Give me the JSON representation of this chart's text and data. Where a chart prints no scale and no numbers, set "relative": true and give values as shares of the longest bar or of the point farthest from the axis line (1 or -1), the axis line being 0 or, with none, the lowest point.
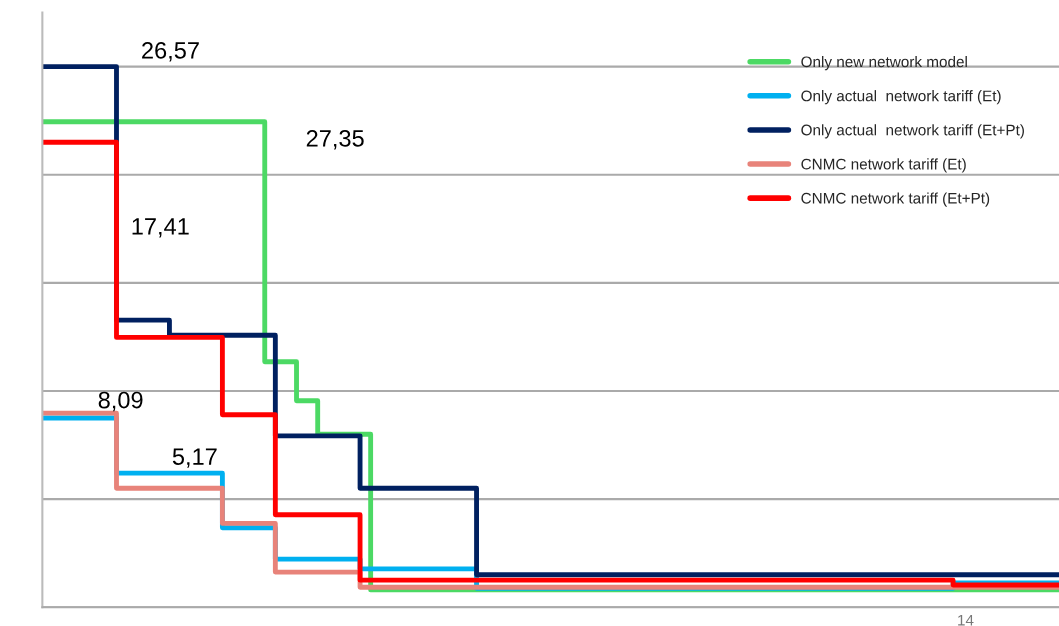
{
  "chart_data": {
    "type": "step",
    "relative": true,
    "grid": "y",
    "legend": "top right",
    "categories": [
      null,
      null,
      null,
      null,
      null,
      null,
      null,
      null,
      null,
      null,
      null,
      null,
      null,
      null,
      null,
      null,
      null,
      null,
      null,
      null,
      null,
      null,
      null,
      null,
      null,
      null,
      null,
      null,
      null,
      null,
      null,
      null,
      null,
      null,
      null,
      null,
      null,
      null,
      null,
      null,
      null,
      null,
      null,
      null,
      null,
      null,
      null,
      null,
      null,
      null,
      null,
      null,
      null,
      null,
      null,
      null,
      null,
      null,
      null,
      null,
      null,
      null,
      null,
      null,
      null,
      null,
      null,
      null,
      null,
      null,
      null,
      null,
      null,
      null,
      null,
      null,
      null,
      null,
      null,
      null,
      null,
      null,
      null,
      null,
      null,
      null,
      null,
      null,
      null,
      null,
      null,
      null,
      null,
      null,
      null,
      null,
      null
    ],
    "series": [
      {
        "name": "Only new network model",
        "color": "#4cd964",
        "values": [
          0.898,
          0.898,
          0.898,
          0.898,
          0.898,
          0.898,
          0.898,
          0.898,
          0.898,
          0.898,
          0.898,
          0.898,
          0.898,
          0.898,
          0.898,
          0.898,
          0.898,
          0.898,
          0.898,
          0.898,
          0.898,
          0.454,
          0.454,
          0.454,
          0.382,
          0.382,
          0.32,
          0.32,
          0.32,
          0.32,
          0.32,
          0.032,
          0.032,
          0.032,
          0.032,
          0.032,
          0.032,
          0.032,
          0.032,
          0.032,
          0.032,
          0.032,
          0.032,
          0.032,
          0.032,
          0.032,
          0.032,
          0.032,
          0.032,
          0.032,
          0.032,
          0.032,
          0.032,
          0.032,
          0.032,
          0.032,
          0.032,
          0.032,
          0.032,
          0.032,
          0.032,
          0.032,
          0.032,
          0.032,
          0.032,
          0.032,
          0.032,
          0.032,
          0.032,
          0.032,
          0.032,
          0.032,
          0.032,
          0.032,
          0.032,
          0.032,
          0.032,
          0.032,
          0.032,
          0.032,
          0.032,
          0.032,
          0.032,
          0.032,
          0.032,
          0.032,
          0.032,
          0.032,
          0.032,
          0.032,
          0.032,
          0.032,
          0.032,
          0.032,
          0.032,
          0.032,
          0.032
        ]
      },
      {
        "name": "Only actual  network tariff (Et)",
        "color": "#00b0f0",
        "values": [
          0.35,
          0.35,
          0.35,
          0.35,
          0.35,
          0.35,
          0.35,
          0.248,
          0.248,
          0.248,
          0.248,
          0.248,
          0.248,
          0.248,
          0.248,
          0.248,
          0.248,
          0.147,
          0.147,
          0.147,
          0.147,
          0.147,
          0.089,
          0.089,
          0.089,
          0.089,
          0.089,
          0.089,
          0.089,
          0.089,
          0.071,
          0.071,
          0.071,
          0.071,
          0.071,
          0.071,
          0.071,
          0.071,
          0.071,
          0.071,
          0.071,
          0.035,
          0.035,
          0.035,
          0.035,
          0.035,
          0.035,
          0.035,
          0.035,
          0.035,
          0.035,
          0.035,
          0.035,
          0.035,
          0.035,
          0.035,
          0.035,
          0.035,
          0.035,
          0.035,
          0.035,
          0.035,
          0.035,
          0.035,
          0.035,
          0.035,
          0.035,
          0.035,
          0.035,
          0.035,
          0.035,
          0.035,
          0.035,
          0.035,
          0.035,
          0.035,
          0.035,
          0.035,
          0.035,
          0.035,
          0.035,
          0.035,
          0.035,
          0.035,
          0.035,
          0.035,
          0.045,
          0.045,
          0.045,
          0.045,
          0.045,
          0.045,
          0.045,
          0.045,
          0.045,
          0.045,
          0.045
        ]
      },
      {
        "name": "Only actual  network tariff (Et+Pt)",
        "color": "#002060",
        "values": [
          1.0,
          1.0,
          1.0,
          1.0,
          1.0,
          1.0,
          1.0,
          0.531,
          0.531,
          0.531,
          0.531,
          0.531,
          0.503,
          0.503,
          0.503,
          0.503,
          0.503,
          0.503,
          0.503,
          0.503,
          0.503,
          0.503,
          0.317,
          0.317,
          0.317,
          0.317,
          0.317,
          0.317,
          0.317,
          0.317,
          0.22,
          0.22,
          0.22,
          0.22,
          0.22,
          0.22,
          0.22,
          0.22,
          0.22,
          0.22,
          0.22,
          0.06,
          0.06,
          0.06,
          0.06,
          0.06,
          0.06,
          0.06,
          0.06,
          0.06,
          0.06,
          0.06,
          0.06,
          0.06,
          0.06,
          0.06,
          0.06,
          0.06,
          0.06,
          0.06,
          0.06,
          0.06,
          0.06,
          0.06,
          0.06,
          0.06,
          0.06,
          0.06,
          0.06,
          0.06,
          0.06,
          0.06,
          0.06,
          0.06,
          0.06,
          0.06,
          0.06,
          0.06,
          0.06,
          0.06,
          0.06,
          0.06,
          0.06,
          0.06,
          0.06,
          0.06,
          0.06,
          0.06,
          0.06,
          0.06,
          0.06,
          0.06,
          0.06,
          0.06,
          0.06,
          0.06,
          0.06
        ]
      },
      {
        "name": "CNMC network tariff (Et)",
        "color": "#e8837a",
        "values": [
          0.359,
          0.359,
          0.359,
          0.359,
          0.359,
          0.359,
          0.359,
          0.22,
          0.22,
          0.22,
          0.22,
          0.22,
          0.22,
          0.22,
          0.22,
          0.22,
          0.22,
          0.155,
          0.155,
          0.155,
          0.155,
          0.155,
          0.065,
          0.065,
          0.065,
          0.065,
          0.065,
          0.065,
          0.065,
          0.065,
          0.037,
          0.037,
          0.037,
          0.037,
          0.037,
          0.037,
          0.037,
          0.037,
          0.037,
          0.037,
          0.037,
          0.037,
          0.037,
          0.037,
          0.037,
          0.037,
          0.037,
          0.037,
          0.037,
          0.037,
          0.037,
          0.037,
          0.037,
          0.037,
          0.037,
          0.037,
          0.037,
          0.037,
          0.037,
          0.037,
          0.037,
          0.037,
          0.037,
          0.037,
          0.037,
          0.037,
          0.037,
          0.037,
          0.037,
          0.037,
          0.037,
          0.037,
          0.037,
          0.037,
          0.037,
          0.037,
          0.037,
          0.037,
          0.037,
          0.037,
          0.037,
          0.037,
          0.037,
          0.037,
          0.037,
          0.037,
          0.037,
          0.037,
          0.037,
          0.037,
          0.037,
          0.037,
          0.037,
          0.037,
          0.037,
          0.037,
          0.037
        ]
      },
      {
        "name": "CNMC network tariff (Et+Pt)",
        "color": "#ff0000",
        "values": [
          0.86,
          0.86,
          0.86,
          0.86,
          0.86,
          0.86,
          0.86,
          0.499,
          0.499,
          0.499,
          0.499,
          0.499,
          0.499,
          0.499,
          0.499,
          0.499,
          0.499,
          0.356,
          0.356,
          0.356,
          0.356,
          0.356,
          0.171,
          0.171,
          0.171,
          0.171,
          0.171,
          0.171,
          0.171,
          0.171,
          0.05,
          0.05,
          0.05,
          0.05,
          0.05,
          0.05,
          0.05,
          0.05,
          0.05,
          0.05,
          0.05,
          0.05,
          0.05,
          0.05,
          0.05,
          0.05,
          0.05,
          0.05,
          0.05,
          0.05,
          0.05,
          0.05,
          0.05,
          0.05,
          0.05,
          0.05,
          0.05,
          0.05,
          0.05,
          0.05,
          0.05,
          0.05,
          0.05,
          0.05,
          0.05,
          0.05,
          0.05,
          0.05,
          0.05,
          0.05,
          0.05,
          0.05,
          0.05,
          0.05,
          0.05,
          0.05,
          0.05,
          0.05,
          0.05,
          0.05,
          0.05,
          0.05,
          0.05,
          0.05,
          0.05,
          0.05,
          0.041,
          0.041,
          0.041,
          0.041,
          0.041,
          0.041,
          0.041,
          0.041,
          0.041,
          0.041,
          0.041
        ]
      }
    ],
    "annotations": [
      "26,57",
      "27,35",
      "17,41",
      "8,09",
      "5,17",
      "14"
    ]
  }
}
